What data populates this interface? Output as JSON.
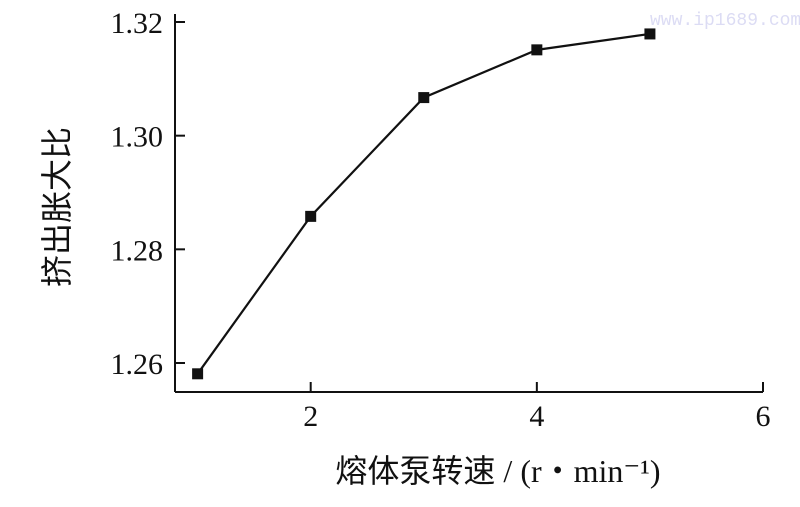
{
  "watermark": "www.ip1689.com",
  "chart_data": {
    "type": "line",
    "xlabel": "熔体泵转速 / (r・min⁻¹)",
    "ylabel": "挤出胀大比",
    "xlim": [
      0.8,
      6
    ],
    "ylim": [
      1.2549,
      1.32
    ],
    "xticks": [
      "2",
      "4",
      "6"
    ],
    "yticks": [
      "1.26",
      "1.28",
      "1.30",
      "1.32"
    ],
    "grid": false,
    "marker": "square",
    "line_color": "#111111",
    "x": [
      1,
      2,
      3,
      4,
      5
    ],
    "values": [
      1.2581,
      1.2858,
      1.3067,
      1.3151,
      1.3179
    ]
  }
}
